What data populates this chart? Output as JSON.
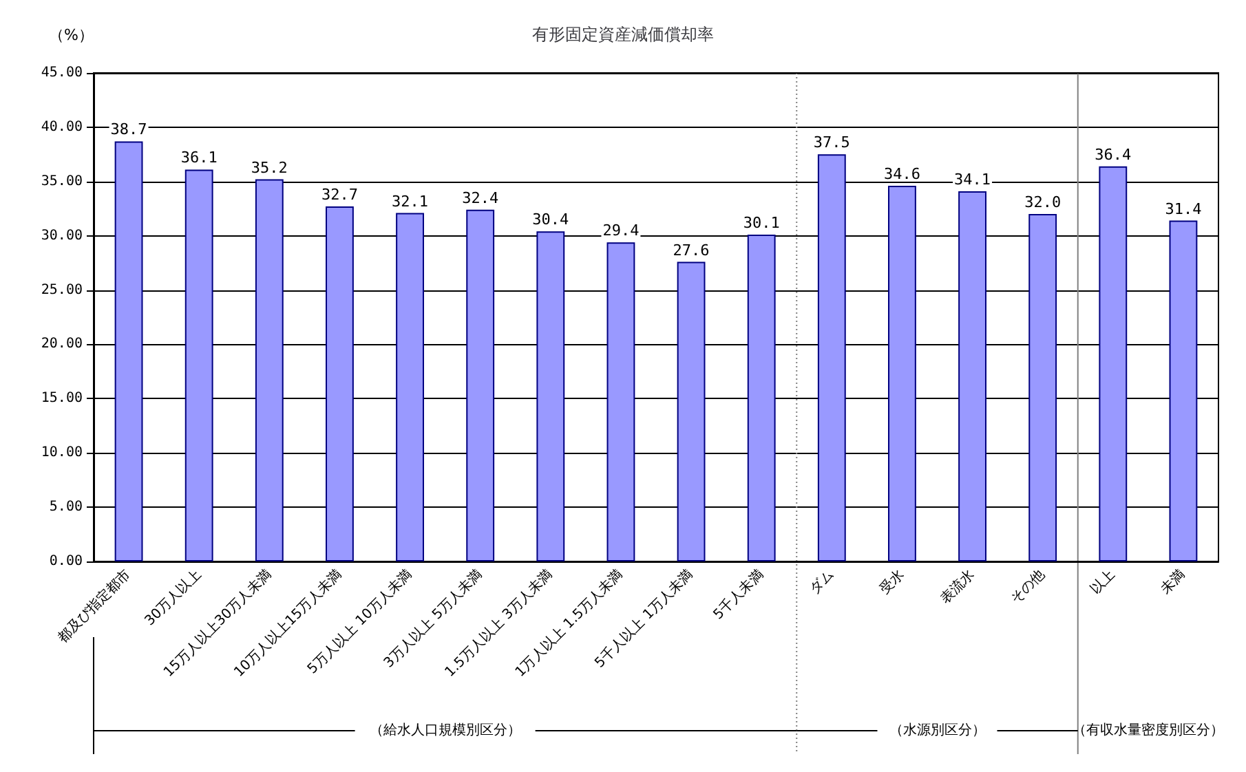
{
  "chart_data": {
    "type": "bar",
    "title": "有形固定資産減価償却率",
    "ylabel": "（%）",
    "categories": [
      "都及び指定都市",
      "30万人以上",
      "15万人以上30万人未満",
      "10万人以上15万人未満",
      "5万人以上 10万人未満",
      "3万人以上 5万人未満",
      "1.5万人以上 3万人未満",
      "1万人以上 1.5万人未満",
      "5千人以上 1万人未満",
      "5千人未満",
      "ダム",
      "受水",
      "表流水",
      "その他",
      "以上",
      "未満"
    ],
    "values": [
      38.7,
      36.1,
      35.2,
      32.7,
      32.1,
      32.4,
      30.4,
      29.4,
      27.6,
      30.1,
      37.5,
      34.6,
      34.1,
      32.0,
      36.4,
      31.4
    ],
    "value_labels": [
      "38.7",
      "36.1",
      "35.2",
      "32.7",
      "32.1",
      "32.4",
      "30.4",
      "29.4",
      "27.6",
      "30.1",
      "37.5",
      "34.6",
      "34.1",
      "32.0",
      "36.4",
      "31.4"
    ],
    "color": "#9999ff",
    "ylim": [
      0,
      45
    ],
    "yticks": [
      {
        "value": 0,
        "label": "0.00"
      },
      {
        "value": 5,
        "label": "5.00"
      },
      {
        "value": 10,
        "label": "10.00"
      },
      {
        "value": 15,
        "label": "15.00"
      },
      {
        "value": 20,
        "label": "20.00"
      },
      {
        "value": 25,
        "label": "25.00"
      },
      {
        "value": 30,
        "label": "30.00"
      },
      {
        "value": 35,
        "label": "35.00"
      },
      {
        "value": 40,
        "label": "40.00"
      },
      {
        "value": 45,
        "label": "45.00"
      }
    ],
    "grid": "y",
    "ref_lines": [
      {
        "axis": "x",
        "value": "ダム",
        "line_style": "dotted",
        "color": "#808080"
      },
      {
        "axis": "x",
        "value": "以上",
        "line_style": "solid",
        "color": "#808080"
      }
    ],
    "annotations": [
      "（給水人口規模別区分）",
      "（水源別区分）",
      "（有収水量密度別区分）"
    ]
  }
}
